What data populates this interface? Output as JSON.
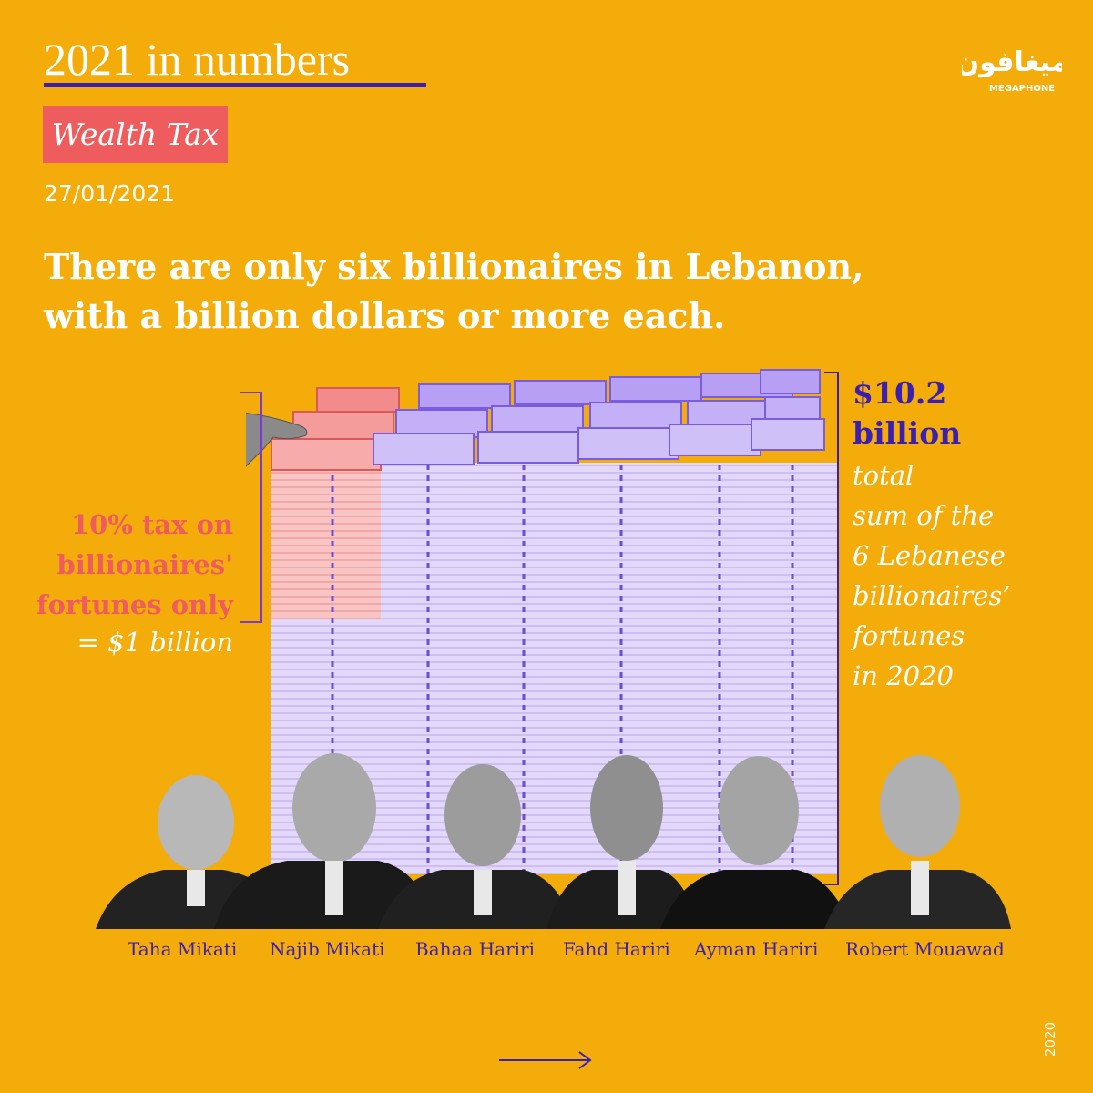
{
  "header": {
    "series_title": "2021 in numbers",
    "topic_badge": "Wealth Tax",
    "date": "27/01/2021"
  },
  "logo": {
    "arabic_text": "ميغافون",
    "latin_text": "MEGAPHONE"
  },
  "headline": {
    "line1": "There are only six billionaires in Lebanon,",
    "line2": "with a billion dollars or more each."
  },
  "left_annotation": {
    "line1": "10% tax on",
    "line2": "billionaires'",
    "line3": "fortunes only",
    "line4": "= $1 billion"
  },
  "right_annotation": {
    "amount_line1": "$10.2",
    "amount_line2": "billion",
    "desc1": "total",
    "desc2": "sum of the",
    "desc3": "6 Lebanese",
    "desc4": "billionaires’",
    "desc5": "fortunes",
    "desc6": "in 2020"
  },
  "people": [
    {
      "name": "Taha Mikati"
    },
    {
      "name": "Najib Mikati"
    },
    {
      "name": "Bahaa Hariri"
    },
    {
      "name": "Fahd Hariri"
    },
    {
      "name": "Ayman Hariri"
    },
    {
      "name": "Robert Mouawad"
    }
  ],
  "footer": {
    "year": "2020"
  },
  "colors": {
    "background": "#F4AC0B",
    "accent_purple": "#3B1FB0",
    "accent_coral": "#EE5C5D",
    "bill_purple": "#A98BF0",
    "bill_red": "#F07070"
  }
}
